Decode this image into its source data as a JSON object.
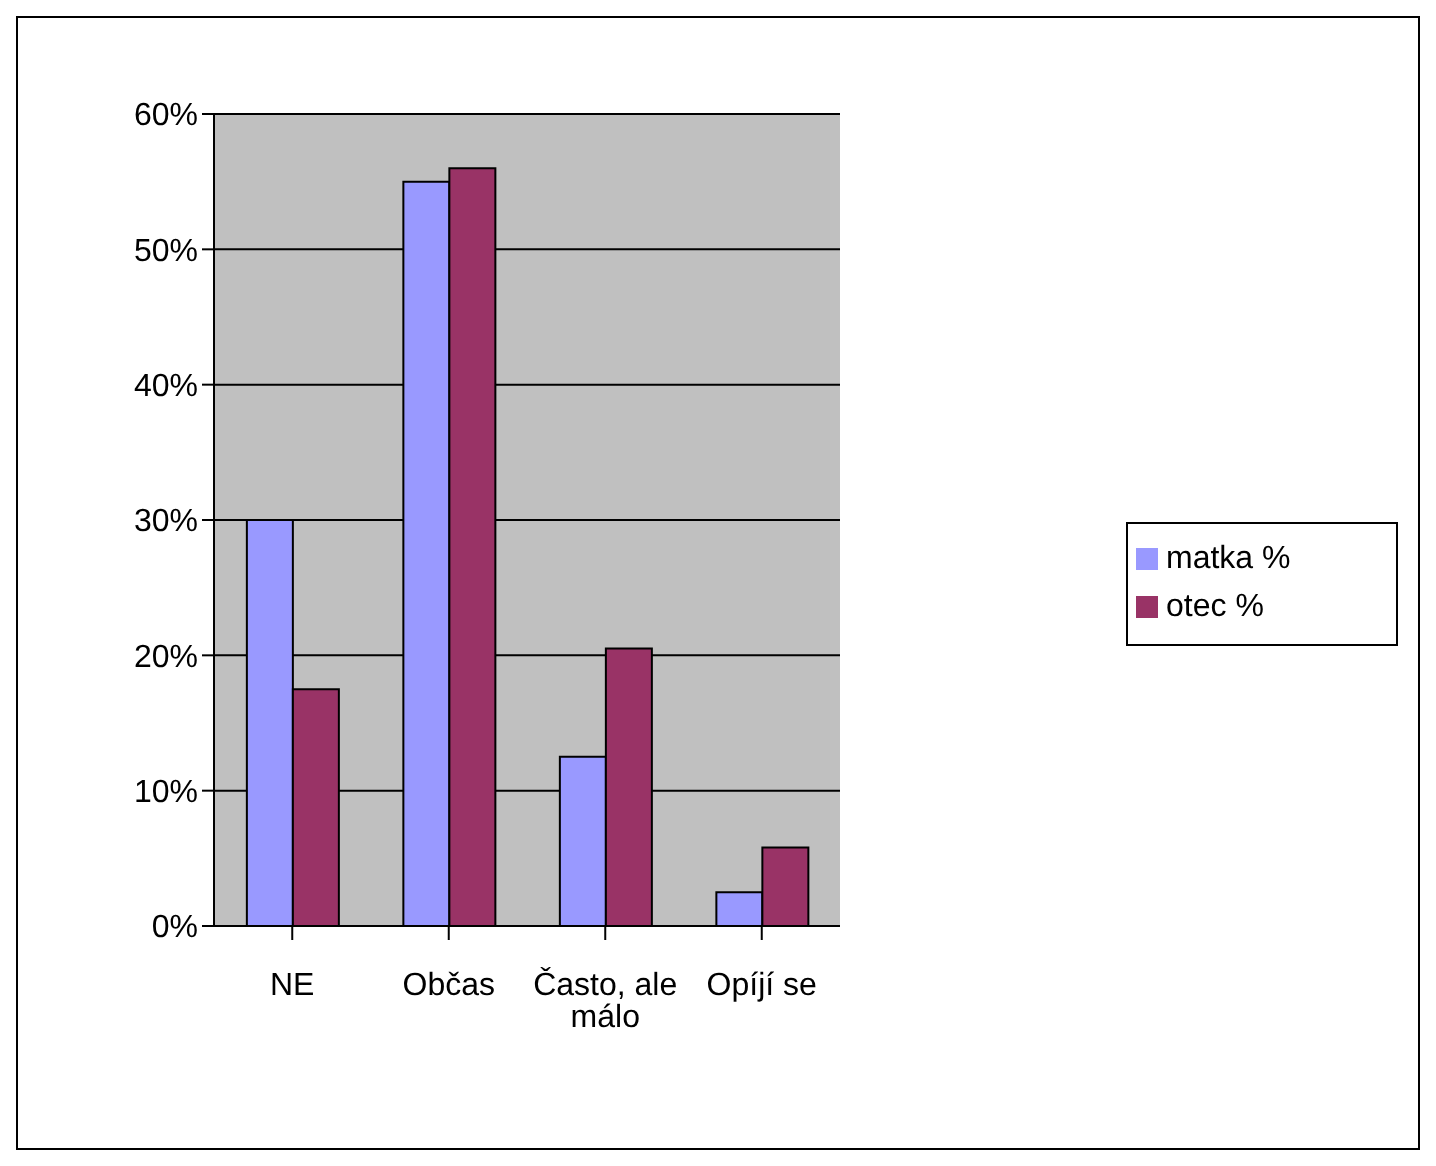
{
  "chart_data": {
    "type": "bar",
    "categories": [
      "NE",
      "Občas",
      "Často, ale málo",
      "Opíjí se"
    ],
    "series": [
      {
        "name": "matka %",
        "color": "#9999ff",
        "values": [
          30,
          55,
          12.5,
          2.5
        ]
      },
      {
        "name": "otec %",
        "color": "#993366",
        "values": [
          17.5,
          56,
          20.5,
          5.8
        ]
      }
    ],
    "ylim": [
      0,
      60
    ],
    "yticks": [
      {
        "value": 0,
        "label": "0%"
      },
      {
        "value": 10,
        "label": "10%"
      },
      {
        "value": 20,
        "label": "20%"
      },
      {
        "value": 30,
        "label": "30%"
      },
      {
        "value": 40,
        "label": "40%"
      },
      {
        "value": 50,
        "label": "50%"
      },
      {
        "value": 60,
        "label": "60%"
      }
    ],
    "grid": "y",
    "legend": "right"
  }
}
